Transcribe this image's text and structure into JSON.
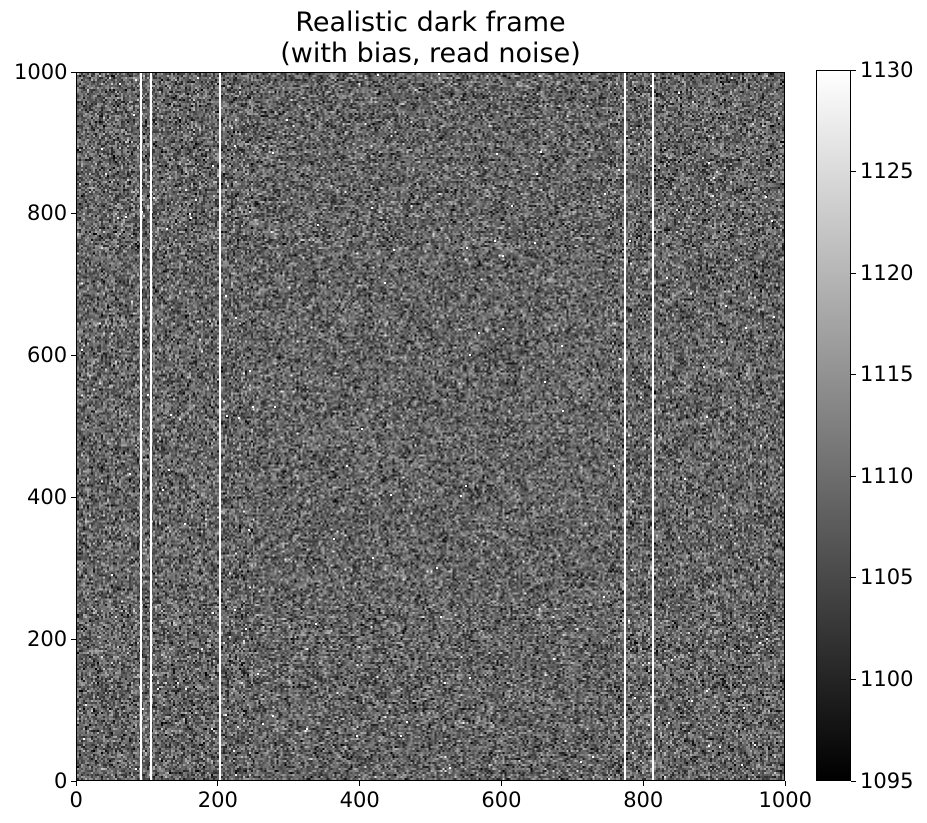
{
  "title": {
    "line1": "Realistic dark frame",
    "line2": "(with bias, read noise)"
  },
  "image": {
    "description_kind": "grayscale noisy detector dark frame",
    "axis_range": [
      0,
      1000
    ],
    "hot_columns_x": [
      90,
      105,
      202,
      773,
      812
    ],
    "x_ticks": [
      "0",
      "200",
      "400",
      "600",
      "800",
      "1000"
    ],
    "y_ticks": [
      "0",
      "200",
      "400",
      "600",
      "800",
      "1000"
    ]
  },
  "colorbar": {
    "range": [
      1095,
      1130
    ],
    "ticks": [
      "1095",
      "1100",
      "1105",
      "1110",
      "1115",
      "1120",
      "1125",
      "1130"
    ],
    "colormap": "gray"
  }
}
